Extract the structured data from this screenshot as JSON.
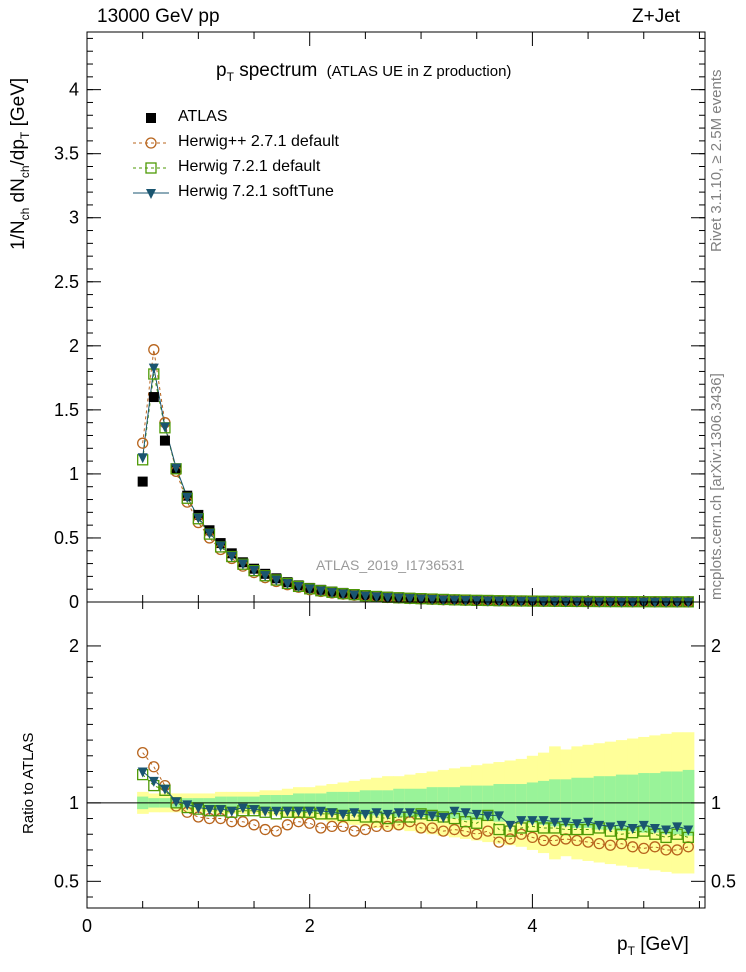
{
  "header": {
    "energy": "13000 GeV pp",
    "process": "Z+Jet"
  },
  "title": {
    "main": "p",
    "sub": "T",
    "rest": " spectrum",
    "note": "(ATLAS UE in Z production)"
  },
  "analysis_watermark": "ATLAS_2019_I1736531",
  "side_labels": {
    "rivet": "Rivet 3.1.10, ≥ 2.5M events",
    "mcplots": "mcplots.cern.ch [arXiv:1306.3436]"
  },
  "ylabel_main": "1/N_ch dN_ch/dp_T [GeV]",
  "ylabel_ratio": "Ratio to ATLAS",
  "xlabel": "p_T [GeV]",
  "legend": [
    {
      "label": "ATLAS",
      "marker": "filled-square",
      "color": "#000000"
    },
    {
      "label": "Herwig++ 2.7.1 default",
      "marker": "open-circle",
      "color": "#b8651e"
    },
    {
      "label": "Herwig 7.2.1 default",
      "marker": "open-square",
      "color": "#4e9a06"
    },
    {
      "label": "Herwig 7.2.1 softTune",
      "marker": "filled-triangle-down",
      "color": "#1a5570"
    }
  ],
  "chart_data": {
    "type": "scatter",
    "xlim": [
      0,
      5.55
    ],
    "ylim_main": [
      0,
      4.45
    ],
    "ylim_ratio": [
      0.33,
      2.28
    ],
    "x_ticks": [
      "0",
      "2",
      "4"
    ],
    "y_ticks_main": [
      "0",
      "0.5",
      "1",
      "1.5",
      "2",
      "2.5",
      "3",
      "3.5",
      "4"
    ],
    "y_ticks_ratio": [
      "0.5",
      "1",
      "2"
    ],
    "x": [
      0.5,
      0.6,
      0.7,
      0.8,
      0.9,
      1.0,
      1.1,
      1.2,
      1.3,
      1.4,
      1.5,
      1.6,
      1.7,
      1.8,
      1.9,
      2.0,
      2.1,
      2.2,
      2.3,
      2.4,
      2.5,
      2.6,
      2.7,
      2.8,
      2.9,
      3.0,
      3.1,
      3.2,
      3.3,
      3.4,
      3.5,
      3.6,
      3.7,
      3.8,
      3.9,
      4.0,
      4.1,
      4.2,
      4.3,
      4.4,
      4.5,
      4.6,
      4.7,
      4.8,
      4.9,
      5.0,
      5.1,
      5.2,
      5.3,
      5.4
    ],
    "atlas": [
      0.94,
      1.6,
      1.26,
      1.04,
      0.83,
      0.68,
      0.56,
      0.46,
      0.38,
      0.31,
      0.26,
      0.22,
      0.185,
      0.155,
      0.13,
      0.11,
      0.095,
      0.082,
      0.071,
      0.062,
      0.054,
      0.047,
      0.041,
      0.036,
      0.032,
      0.028,
      0.025,
      0.022,
      0.019,
      0.017,
      0.015,
      0.013,
      0.012,
      0.011,
      0.0095,
      0.0085,
      0.0076,
      0.0068,
      0.006,
      0.0054,
      0.0048,
      0.0043,
      0.0039,
      0.0035,
      0.0031,
      0.0028,
      0.0025,
      0.0023,
      0.002,
      0.0018
    ],
    "herwigpp_271_default": [
      1.24,
      1.97,
      1.4,
      1.02,
      0.78,
      0.62,
      0.5,
      0.41,
      0.34,
      0.28,
      0.23,
      0.19,
      0.16,
      0.135,
      0.115,
      0.096,
      0.082,
      0.07,
      0.061,
      0.053,
      0.046,
      0.04,
      0.035,
      0.031,
      0.027,
      0.024,
      0.021,
      0.018,
      0.016,
      0.014,
      0.012,
      0.011,
      0.0095,
      0.0085,
      0.0075,
      0.0066,
      0.0058,
      0.0052,
      0.0046,
      0.0041,
      0.0036,
      0.0032,
      0.0029,
      0.0026,
      0.0023,
      0.002,
      0.0018,
      0.0016,
      0.0014,
      0.0013
    ],
    "herwig_721_default": [
      1.11,
      1.78,
      1.36,
      1.04,
      0.81,
      0.65,
      0.53,
      0.43,
      0.355,
      0.295,
      0.245,
      0.205,
      0.172,
      0.145,
      0.122,
      0.103,
      0.088,
      0.076,
      0.065,
      0.057,
      0.049,
      0.043,
      0.037,
      0.033,
      0.029,
      0.026,
      0.023,
      0.02,
      0.017,
      0.015,
      0.013,
      0.012,
      0.01,
      0.009,
      0.008,
      0.0072,
      0.0064,
      0.0057,
      0.005,
      0.0045,
      0.004,
      0.0036,
      0.0032,
      0.0028,
      0.0025,
      0.0023,
      0.002,
      0.0018,
      0.0016,
      0.0014
    ],
    "herwig_721_softtune": [
      1.13,
      1.83,
      1.37,
      1.05,
      0.82,
      0.66,
      0.54,
      0.44,
      0.36,
      0.3,
      0.25,
      0.21,
      0.175,
      0.147,
      0.124,
      0.105,
      0.09,
      0.077,
      0.066,
      0.058,
      0.05,
      0.044,
      0.038,
      0.034,
      0.03,
      0.026,
      0.023,
      0.02,
      0.018,
      0.016,
      0.014,
      0.012,
      0.011,
      0.0095,
      0.0085,
      0.0076,
      0.0068,
      0.006,
      0.0053,
      0.0047,
      0.0042,
      0.0037,
      0.0033,
      0.003,
      0.0026,
      0.0024,
      0.0021,
      0.0019,
      0.0017,
      0.0015
    ],
    "ratio_herwigpp_271_default": [
      1.32,
      1.23,
      1.11,
      0.98,
      0.94,
      0.91,
      0.9,
      0.9,
      0.88,
      0.88,
      0.86,
      0.83,
      0.82,
      0.86,
      0.88,
      0.87,
      0.84,
      0.85,
      0.85,
      0.82,
      0.83,
      0.85,
      0.85,
      0.86,
      0.88,
      0.84,
      0.84,
      0.82,
      0.83,
      0.82,
      0.8,
      0.82,
      0.75,
      0.77,
      0.8,
      0.78,
      0.76,
      0.76,
      0.77,
      0.76,
      0.75,
      0.74,
      0.73,
      0.74,
      0.72,
      0.71,
      0.72,
      0.7,
      0.7,
      0.72
    ],
    "ratio_herwig_721_default": [
      1.18,
      1.11,
      1.08,
      1.0,
      0.97,
      0.96,
      0.95,
      0.95,
      0.94,
      0.95,
      0.95,
      0.94,
      0.93,
      0.94,
      0.94,
      0.94,
      0.93,
      0.93,
      0.92,
      0.92,
      0.91,
      0.91,
      0.9,
      0.91,
      0.91,
      0.93,
      0.92,
      0.91,
      0.9,
      0.88,
      0.87,
      0.92,
      0.83,
      0.82,
      0.84,
      0.85,
      0.84,
      0.84,
      0.83,
      0.83,
      0.83,
      0.84,
      0.82,
      0.8,
      0.81,
      0.82,
      0.8,
      0.78,
      0.8,
      0.78
    ],
    "ratio_herwig_721_softtune": [
      1.2,
      1.14,
      1.09,
      1.01,
      0.99,
      0.97,
      0.96,
      0.96,
      0.95,
      0.97,
      0.96,
      0.95,
      0.95,
      0.95,
      0.95,
      0.95,
      0.95,
      0.94,
      0.93,
      0.94,
      0.93,
      0.94,
      0.93,
      0.94,
      0.94,
      0.93,
      0.92,
      0.91,
      0.95,
      0.94,
      0.93,
      0.92,
      0.92,
      0.86,
      0.89,
      0.89,
      0.89,
      0.88,
      0.88,
      0.87,
      0.88,
      0.86,
      0.85,
      0.86,
      0.84,
      0.86,
      0.84,
      0.83,
      0.85,
      0.83
    ],
    "band_stat_halfwidth": [
      0.04,
      0.03,
      0.03,
      0.03,
      0.03,
      0.03,
      0.03,
      0.04,
      0.04,
      0.04,
      0.04,
      0.05,
      0.05,
      0.05,
      0.06,
      0.06,
      0.06,
      0.07,
      0.07,
      0.07,
      0.08,
      0.08,
      0.08,
      0.09,
      0.09,
      0.09,
      0.1,
      0.1,
      0.1,
      0.11,
      0.11,
      0.11,
      0.12,
      0.12,
      0.12,
      0.13,
      0.14,
      0.15,
      0.15,
      0.16,
      0.16,
      0.17,
      0.17,
      0.18,
      0.18,
      0.19,
      0.19,
      0.2,
      0.2,
      0.21
    ],
    "band_total_halfwidth": [
      0.07,
      0.06,
      0.06,
      0.06,
      0.06,
      0.06,
      0.06,
      0.07,
      0.07,
      0.07,
      0.07,
      0.08,
      0.08,
      0.09,
      0.1,
      0.1,
      0.11,
      0.12,
      0.13,
      0.14,
      0.15,
      0.16,
      0.17,
      0.17,
      0.18,
      0.19,
      0.2,
      0.21,
      0.22,
      0.23,
      0.24,
      0.25,
      0.26,
      0.27,
      0.28,
      0.3,
      0.32,
      0.36,
      0.34,
      0.36,
      0.37,
      0.38,
      0.39,
      0.4,
      0.41,
      0.42,
      0.43,
      0.44,
      0.45,
      0.45
    ]
  }
}
